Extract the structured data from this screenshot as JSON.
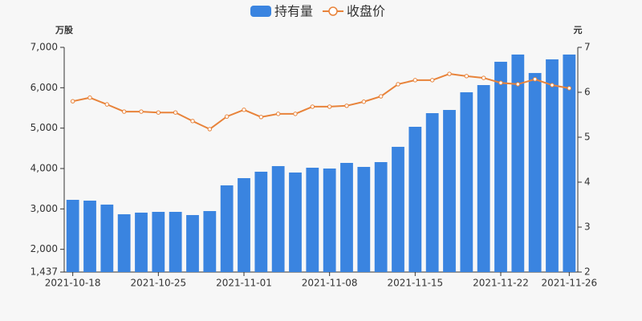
{
  "chart_data": {
    "type": "bar_line",
    "y_unit": "万股",
    "y2_unit": "元",
    "categories": [
      "2021-10-18",
      null,
      null,
      null,
      null,
      "2021-10-25",
      null,
      null,
      null,
      null,
      "2021-11-01",
      null,
      null,
      null,
      null,
      "2021-11-08",
      null,
      null,
      null,
      null,
      "2021-11-15",
      null,
      null,
      null,
      null,
      "2021-11-22",
      null,
      null,
      null,
      "2021-11-26"
    ],
    "series": [
      {
        "name": "持有量",
        "type": "bar",
        "color": "#3a84e0",
        "values": [
          3225,
          3205,
          3107,
          2868,
          2908,
          2927,
          2927,
          2848,
          2947,
          3583,
          3762,
          3921,
          4060,
          3901,
          4020,
          4000,
          4139,
          4040,
          4159,
          4537,
          5033,
          5371,
          5450,
          5888,
          6066,
          6643,
          6822,
          6365,
          6703,
          6822
        ]
      },
      {
        "name": "收盘价",
        "type": "line",
        "axis": "y2",
        "color": "#e8833a",
        "values": [
          5.8,
          5.88,
          5.73,
          5.57,
          5.57,
          5.55,
          5.55,
          5.36,
          5.18,
          5.46,
          5.61,
          5.45,
          5.52,
          5.52,
          5.68,
          5.68,
          5.7,
          5.79,
          5.91,
          6.18,
          6.27,
          6.27,
          6.41,
          6.36,
          6.32,
          6.21,
          6.18,
          6.29,
          6.16,
          6.09
        ]
      }
    ],
    "ylim": [
      1437,
      7000
    ],
    "yticks": [
      {
        "value": 1437,
        "label": "1,437"
      },
      {
        "value": 2000,
        "label": "2,000"
      },
      {
        "value": 3000,
        "label": "3,000"
      },
      {
        "value": 4000,
        "label": "4,000"
      },
      {
        "value": 5000,
        "label": "5,000"
      },
      {
        "value": 6000,
        "label": "6,000"
      },
      {
        "value": 7000,
        "label": "7,000"
      }
    ],
    "y2lim": [
      2,
      7
    ],
    "y2ticks": [
      2,
      3,
      4,
      5,
      6,
      7
    ],
    "grid": false
  }
}
